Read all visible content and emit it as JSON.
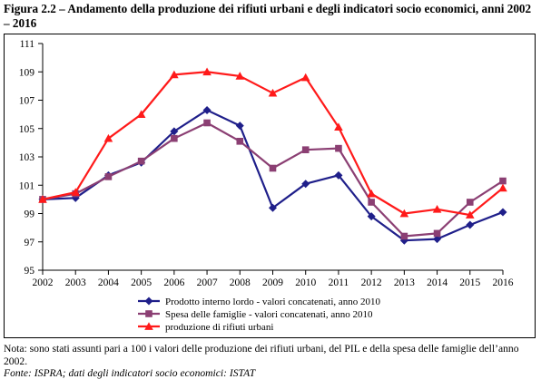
{
  "figure": {
    "title": "Figura 2.2 – Andamento della produzione dei rifiuti urbani e degli indicatori socio economici, anni 2002 – 2016"
  },
  "chart_data": {
    "type": "line",
    "x": [
      "2002",
      "2003",
      "2004",
      "2005",
      "2006",
      "2007",
      "2008",
      "2009",
      "2010",
      "2011",
      "2012",
      "2013",
      "2014",
      "2015",
      "2016"
    ],
    "ylim": [
      95,
      111
    ],
    "yticks": [
      95,
      97,
      99,
      101,
      103,
      105,
      107,
      109,
      111
    ],
    "grid": false,
    "legend_position": "bottom",
    "series": [
      {
        "name": "Prodotto interno lordo - valori concatenati, anno 2010",
        "color": "#1f1f8a",
        "marker": "diamond",
        "values": [
          100.0,
          100.1,
          101.7,
          102.6,
          104.8,
          106.3,
          105.2,
          99.4,
          101.1,
          101.7,
          98.8,
          97.1,
          97.2,
          98.2,
          99.1
        ]
      },
      {
        "name": "Spesa delle famiglie - valori concatenati, anno 2010",
        "color": "#8b3f73",
        "marker": "square",
        "values": [
          100.0,
          100.4,
          101.6,
          102.7,
          104.3,
          105.4,
          104.1,
          102.2,
          103.5,
          103.6,
          99.8,
          97.4,
          97.6,
          99.8,
          101.3
        ]
      },
      {
        "name": "produzione di rifiuti urbani",
        "color": "#ff1a1a",
        "marker": "triangle",
        "values": [
          100.0,
          100.5,
          104.3,
          106.0,
          108.8,
          109.0,
          108.7,
          107.5,
          108.6,
          105.1,
          100.4,
          99.0,
          99.3,
          98.9,
          100.8
        ]
      }
    ]
  },
  "notes": {
    "note": "Nota: sono stati assunti pari a 100 i valori delle produzione dei rifiuti urbani, del PIL e della spesa delle famiglie dell’anno 2002.",
    "source": "Fonte: ISPRA; dati degli indicatori socio economici: ISTAT"
  }
}
